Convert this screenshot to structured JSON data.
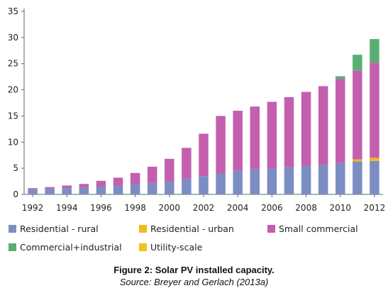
{
  "chart_data": {
    "type": "bar",
    "stacked": true,
    "categories": [
      "1992",
      "1993",
      "1994",
      "1995",
      "1996",
      "1997",
      "1998",
      "1999",
      "2000",
      "2001",
      "2002",
      "2003",
      "2004",
      "2005",
      "2006",
      "2007",
      "2008",
      "2009",
      "2010",
      "2011",
      "2012"
    ],
    "x_tick_labels": [
      "1992",
      "1994",
      "1996",
      "1998",
      "2000",
      "2002",
      "2004",
      "2006",
      "2008",
      "2010",
      "2012"
    ],
    "y_ticks": [
      "0",
      "5",
      "10",
      "15",
      "20",
      "25",
      "30",
      "35"
    ],
    "ylim": [
      0,
      35
    ],
    "grid": false,
    "legend_position": "bottom",
    "series": [
      {
        "name": "Residential - rural",
        "color": "#7b8dc2",
        "values": [
          1.0,
          1.1,
          1.2,
          1.3,
          1.5,
          1.7,
          1.9,
          2.2,
          2.5,
          3.0,
          3.5,
          4.0,
          4.5,
          4.8,
          5.0,
          5.2,
          5.5,
          5.7,
          6.0,
          6.3,
          6.4
        ]
      },
      {
        "name": "Residential - urban",
        "color": "#f2b91d",
        "values": [
          0,
          0,
          0,
          0,
          0,
          0,
          0,
          0,
          0,
          0,
          0,
          0,
          0,
          0,
          0,
          0,
          0,
          0,
          0,
          0.4,
          0.6
        ]
      },
      {
        "name": "Small commercial",
        "color": "#c45fae",
        "values": [
          0.2,
          0.3,
          0.5,
          0.7,
          1.1,
          1.5,
          2.2,
          3.1,
          4.3,
          5.9,
          8.1,
          11.0,
          11.5,
          12.0,
          12.7,
          13.4,
          14.1,
          15.0,
          16.1,
          17.0,
          18.2
        ]
      },
      {
        "name": "Commercial+industrial",
        "color": "#5aae73",
        "values": [
          0,
          0,
          0,
          0,
          0,
          0,
          0,
          0,
          0,
          0,
          0,
          0,
          0,
          0,
          0,
          0,
          0,
          0,
          0.5,
          3.0,
          4.5
        ]
      },
      {
        "name": "Utility-scale",
        "color": "#f2c21e",
        "values": [
          0,
          0,
          0,
          0,
          0,
          0,
          0,
          0,
          0,
          0,
          0,
          0,
          0,
          0,
          0,
          0,
          0,
          0,
          0,
          0,
          0
        ]
      }
    ],
    "title": "",
    "xlabel": "",
    "ylabel": ""
  },
  "caption": {
    "title": "Figure 2: Solar PV installed capacity.",
    "source": "Source: Breyer and Gerlach (2013a)"
  }
}
